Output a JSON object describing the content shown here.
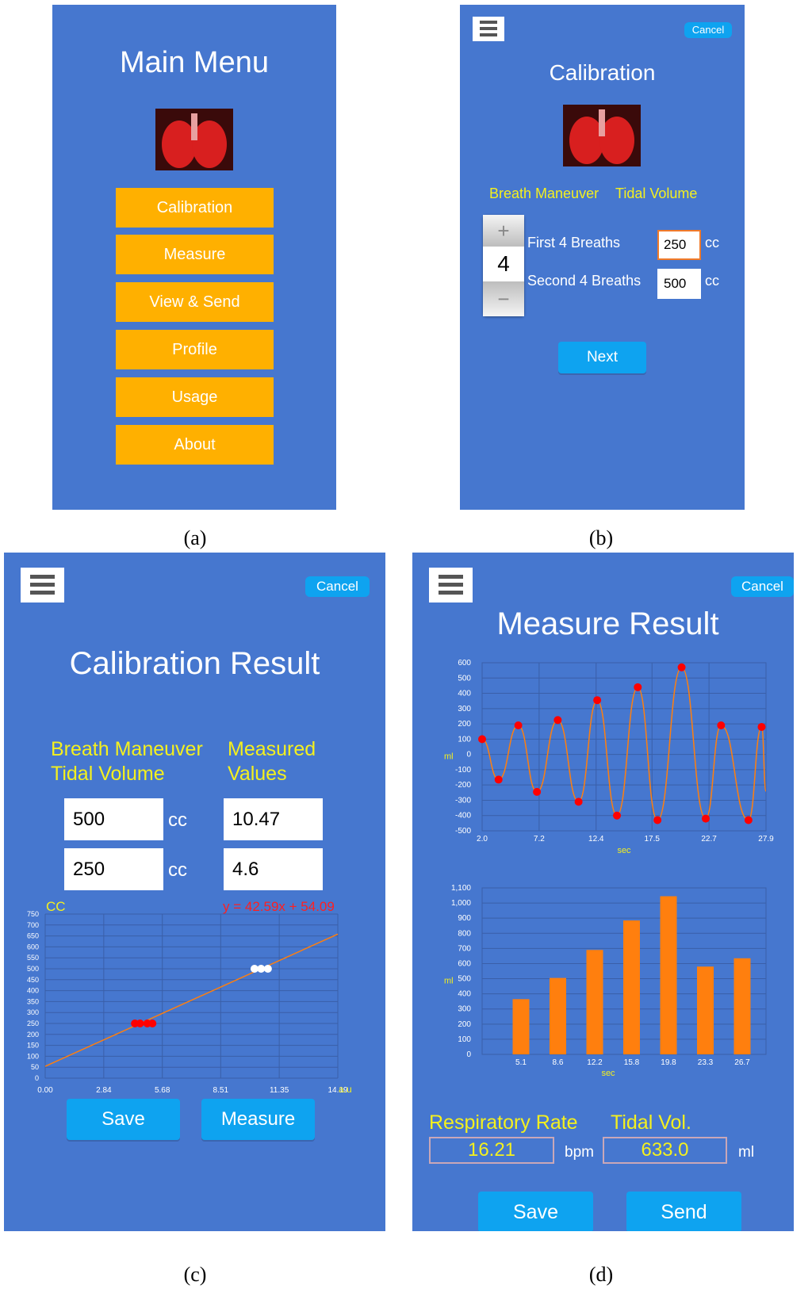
{
  "captions": {
    "a": "(a)",
    "b": "(b)",
    "c": "(c)",
    "d": "(d)"
  },
  "main_menu": {
    "title": "Main Menu",
    "items": [
      "Calibration",
      "Measure",
      "View & Send",
      "Profile",
      "Usage",
      "About"
    ]
  },
  "calibration": {
    "cancel_label": "Cancel",
    "title": "Calibration",
    "header_maneuver": "Breath Maneuver",
    "header_volume": "Tidal Volume",
    "stepper_plus": "+",
    "stepper_value": "4",
    "stepper_minus": "−",
    "rows": [
      {
        "label": "First 4 Breaths",
        "value": "250",
        "unit": "cc"
      },
      {
        "label": "Second 4 Breaths",
        "value": "500",
        "unit": "cc"
      }
    ],
    "next_label": "Next"
  },
  "calibration_result": {
    "cancel_label": "Cancel",
    "title": "Calibration Result",
    "col1_line1": "Breath Maneuver",
    "col1_line2": "Tidal Volume",
    "col2_line1": "Measured",
    "col2_line2": "Values",
    "rows": [
      {
        "volume": "500",
        "unit": "cc",
        "measured": "10.47"
      },
      {
        "volume": "250",
        "unit": "cc",
        "measured": "4.6"
      }
    ],
    "y_unit": "CC",
    "equation": "y = 42.59x + 54.09",
    "x_unit": "a.u",
    "save_label": "Save",
    "measure_label": "Measure"
  },
  "measure_result": {
    "cancel_label": "Cancel",
    "title": "Measure Result",
    "rate_label": "Respiratory Rate",
    "tidal_label": "Tidal Vol.",
    "rate_value": "16.21",
    "rate_unit": "bpm",
    "tidal_value": "633.0",
    "tidal_unit": "ml",
    "save_label": "Save",
    "send_label": "Send"
  },
  "colors": {
    "screen_bg": "#4677cf",
    "menu_button": "#ffb000",
    "accent_blue": "#0ea3f0",
    "highlight_text": "#f4f01e",
    "series_orange": "#ff7f0e",
    "marker_red": "#ff0000"
  },
  "chart_data": [
    {
      "type": "scatter",
      "ylabel": "CC",
      "xlabel": "a.u",
      "x_ticks": [
        "0.00",
        "2.84",
        "5.68",
        "8.51",
        "11.35",
        "14.19"
      ],
      "y_ticks": [
        "0",
        "50",
        "100",
        "150",
        "200",
        "250",
        "300",
        "350",
        "400",
        "450",
        "500",
        "550",
        "600",
        "650",
        "700",
        "750"
      ],
      "xlim": [
        0,
        14.19
      ],
      "ylim": [
        0,
        750
      ],
      "fit_line": {
        "label": "y = 42.59x + 54.09",
        "slope": 42.59,
        "intercept": 54.09
      },
      "series": [
        {
          "color": "#ff0000",
          "x": [
            4.35,
            4.6,
            4.95,
            5.2
          ],
          "y": [
            250,
            250,
            250,
            250
          ]
        },
        {
          "color": "#ffffff",
          "x": [
            10.15,
            10.47,
            10.8
          ],
          "y": [
            500,
            500,
            500
          ]
        }
      ],
      "grid": true
    },
    {
      "type": "line",
      "xlabel": "sec",
      "ylabel": "ml",
      "x_ticks": [
        "2.0",
        "7.2",
        "12.4",
        "17.5",
        "22.7",
        "27.9"
      ],
      "y_ticks": [
        "600",
        "500",
        "400",
        "300",
        "200",
        "100",
        "0",
        "-100",
        "-200",
        "-300",
        "-400",
        "-500"
      ],
      "xlim": [
        2.0,
        27.9
      ],
      "ylim": [
        -500,
        600
      ],
      "series": [
        {
          "x": [
            2.0,
            3.5,
            5.3,
            7.0,
            8.9,
            10.8,
            12.5,
            14.3,
            16.2,
            18.0,
            20.2,
            22.4,
            23.8,
            26.3,
            27.5,
            27.9
          ],
          "y": [
            100,
            -165,
            190,
            -245,
            225,
            -310,
            355,
            -400,
            440,
            -430,
            570,
            -420,
            190,
            -430,
            180,
            -240
          ]
        }
      ],
      "grid": true
    },
    {
      "type": "bar",
      "xlabel": "sec",
      "ylabel": "ml",
      "categories": [
        "5.1",
        "8.6",
        "12.2",
        "15.8",
        "19.8",
        "23.3",
        "26.7"
      ],
      "values": [
        365,
        505,
        690,
        885,
        1045,
        580,
        635
      ],
      "y_ticks": [
        "1,100",
        "1,000",
        "900",
        "800",
        "700",
        "600",
        "500",
        "400",
        "300",
        "200",
        "100",
        "0"
      ],
      "ylim": [
        0,
        1100
      ],
      "grid": true
    }
  ]
}
